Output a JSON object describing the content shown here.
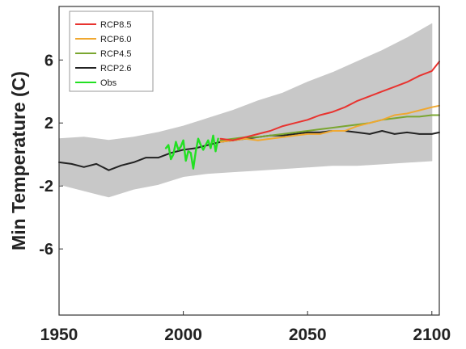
{
  "chart_data": {
    "type": "line",
    "title": "",
    "xlabel": "",
    "ylabel": "Min Temperature (C)",
    "xlim": [
      1950,
      2103
    ],
    "ylim": [
      -10.2,
      9.4
    ],
    "xticks": [
      1950,
      2000,
      2050,
      2100
    ],
    "yticks": [
      6,
      2,
      -2,
      -6
    ],
    "grid": false,
    "legend_position": "top-left",
    "ensemble_band": {
      "color": "#c8c8c8",
      "x": [
        1950,
        1960,
        1970,
        1980,
        1990,
        2000,
        2010,
        2020,
        2030,
        2040,
        2050,
        2060,
        2070,
        2080,
        2090,
        2100
      ],
      "upper": [
        1.0,
        1.1,
        0.9,
        1.1,
        1.4,
        1.8,
        2.3,
        2.8,
        3.4,
        3.9,
        4.6,
        5.2,
        5.9,
        6.6,
        7.4,
        8.3
      ],
      "lower": [
        -1.9,
        -2.3,
        -2.7,
        -2.2,
        -1.9,
        -1.4,
        -1.2,
        -1.1,
        -1.0,
        -0.9,
        -0.8,
        -0.7,
        -0.7,
        -0.6,
        -0.5,
        -0.4
      ]
    },
    "series": [
      {
        "name": "RCP8.5",
        "color": "#e8332f",
        "x": [
          2015,
          2020,
          2025,
          2030,
          2035,
          2040,
          2045,
          2050,
          2055,
          2060,
          2065,
          2070,
          2075,
          2080,
          2085,
          2090,
          2095,
          2100,
          2103
        ],
        "values": [
          1.0,
          0.9,
          1.1,
          1.3,
          1.5,
          1.8,
          2.0,
          2.2,
          2.5,
          2.7,
          3.0,
          3.4,
          3.7,
          4.0,
          4.3,
          4.6,
          5.0,
          5.3,
          5.9
        ]
      },
      {
        "name": "RCP6.0",
        "color": "#f0a830",
        "x": [
          2015,
          2020,
          2025,
          2030,
          2035,
          2040,
          2045,
          2050,
          2055,
          2060,
          2065,
          2070,
          2075,
          2080,
          2085,
          2090,
          2095,
          2100,
          2103
        ],
        "values": [
          0.8,
          0.9,
          1.0,
          0.9,
          1.0,
          1.1,
          1.2,
          1.3,
          1.3,
          1.5,
          1.5,
          1.8,
          2.0,
          2.2,
          2.5,
          2.6,
          2.8,
          3.0,
          3.1
        ]
      },
      {
        "name": "RCP4.5",
        "color": "#7aa630",
        "x": [
          2015,
          2020,
          2025,
          2030,
          2035,
          2040,
          2045,
          2050,
          2055,
          2060,
          2065,
          2070,
          2075,
          2080,
          2085,
          2090,
          2095,
          2100,
          2103
        ],
        "values": [
          0.9,
          1.0,
          1.1,
          1.1,
          1.2,
          1.3,
          1.4,
          1.5,
          1.6,
          1.7,
          1.8,
          1.9,
          2.0,
          2.2,
          2.3,
          2.4,
          2.4,
          2.5,
          2.5
        ]
      },
      {
        "name": "RCP2.6",
        "color": "#222222",
        "x": [
          1950,
          1955,
          1960,
          1965,
          1970,
          1975,
          1980,
          1985,
          1990,
          1995,
          2000,
          2005,
          2010,
          2015,
          2020,
          2025,
          2030,
          2035,
          2040,
          2045,
          2050,
          2055,
          2060,
          2065,
          2070,
          2075,
          2080,
          2085,
          2090,
          2095,
          2100,
          2103
        ],
        "values": [
          -0.5,
          -0.6,
          -0.8,
          -0.6,
          -1.0,
          -0.7,
          -0.5,
          -0.2,
          -0.2,
          0.1,
          0.3,
          0.4,
          0.6,
          0.8,
          0.9,
          1.0,
          1.1,
          1.2,
          1.2,
          1.3,
          1.4,
          1.4,
          1.5,
          1.5,
          1.4,
          1.3,
          1.5,
          1.3,
          1.4,
          1.3,
          1.3,
          1.4
        ]
      },
      {
        "name": "Obs",
        "color": "#22e022",
        "x": [
          1993,
          1994,
          1995,
          1996,
          1997,
          1998,
          1999,
          2000,
          2001,
          2002,
          2003,
          2004,
          2005,
          2006,
          2007,
          2008,
          2009,
          2010,
          2011,
          2012,
          2013,
          2014
        ],
        "values": [
          0.4,
          0.6,
          -0.3,
          0.0,
          0.8,
          0.3,
          0.5,
          0.9,
          -0.4,
          0.2,
          0.1,
          -0.9,
          0.2,
          1.0,
          0.6,
          0.3,
          0.6,
          0.9,
          0.4,
          1.2,
          0.2,
          1.0
        ]
      }
    ]
  }
}
